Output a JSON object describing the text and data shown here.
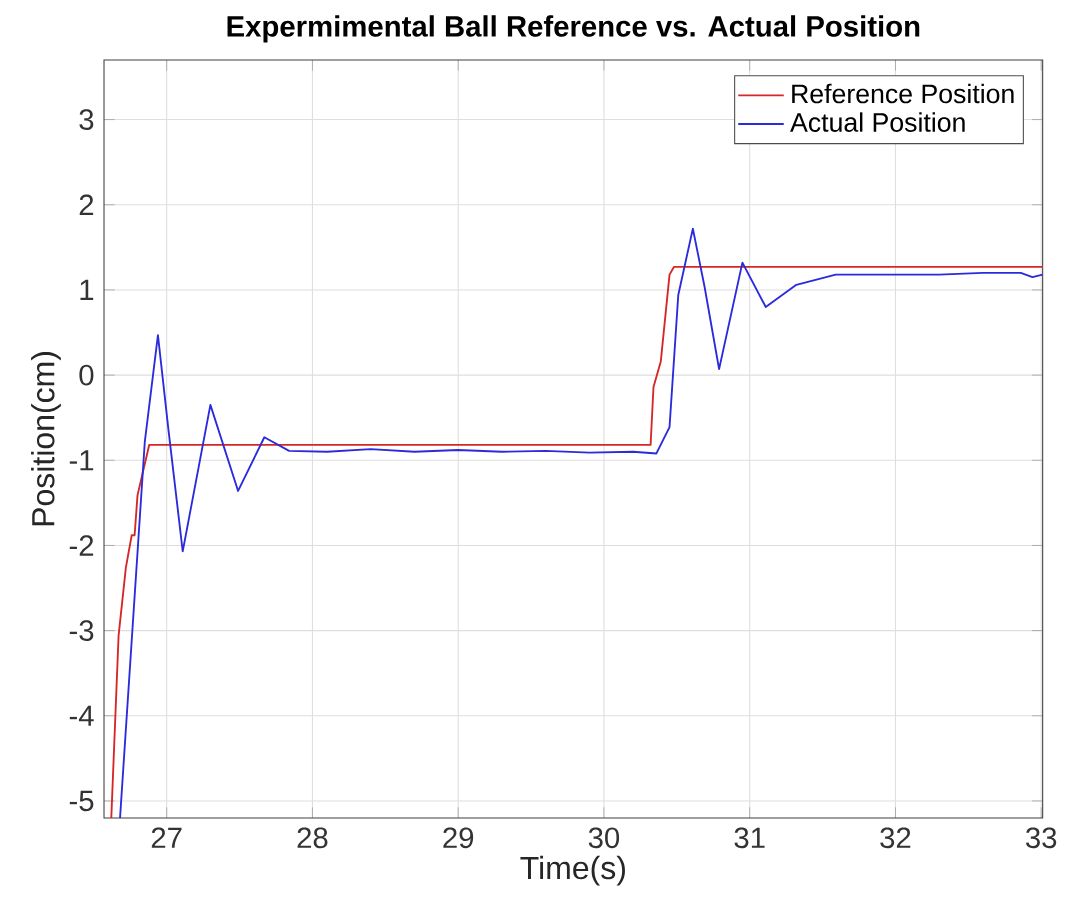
{
  "chart_data": {
    "type": "line",
    "title": "Expermimental Ball Reference vs. Actual Position",
    "xlabel": "Time(s)",
    "ylabel": "Position(cm)",
    "xlim": [
      26.57,
      33.01
    ],
    "ylim": [
      -5.2,
      3.7
    ],
    "xticks": [
      27,
      28,
      29,
      30,
      31,
      32,
      33
    ],
    "yticks": [
      -5,
      -4,
      -3,
      -2,
      -1,
      0,
      1,
      2,
      3
    ],
    "grid": true,
    "legend": "top right",
    "marker": "none",
    "line_style": "solid",
    "series": [
      {
        "name": "Reference Position",
        "color": "#d62728",
        "x": [
          26.62,
          26.67,
          26.72,
          26.76,
          26.78,
          26.8,
          26.88,
          30.32,
          30.34,
          30.39,
          30.45,
          30.48,
          33.01
        ],
        "values": [
          -5.2,
          -3.06,
          -2.26,
          -1.88,
          -1.88,
          -1.41,
          -0.82,
          -0.82,
          -0.14,
          0.16,
          1.18,
          1.27,
          1.27
        ]
      },
      {
        "name": "Actual Position",
        "color": "#2b2bdd",
        "x": [
          26.68,
          26.85,
          26.94,
          27.01,
          27.11,
          27.3,
          27.49,
          27.67,
          27.84,
          28.1,
          28.4,
          28.7,
          29.0,
          29.3,
          29.6,
          29.9,
          30.2,
          30.36,
          30.45,
          30.51,
          30.61,
          30.69,
          30.79,
          30.95,
          31.11,
          31.32,
          31.59,
          31.94,
          32.3,
          32.6,
          32.86,
          32.94,
          33.01
        ],
        "values": [
          -5.2,
          -0.78,
          0.47,
          -0.61,
          -2.07,
          -0.35,
          -1.36,
          -0.73,
          -0.89,
          -0.9,
          -0.87,
          -0.9,
          -0.88,
          -0.9,
          -0.89,
          -0.91,
          -0.9,
          -0.92,
          -0.61,
          0.94,
          1.72,
          1.04,
          0.07,
          1.32,
          0.8,
          1.06,
          1.18,
          1.18,
          1.18,
          1.2,
          1.2,
          1.15,
          1.18
        ]
      }
    ]
  }
}
